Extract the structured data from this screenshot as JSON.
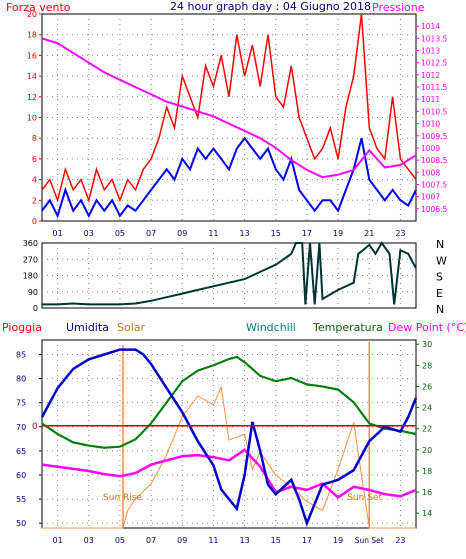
{
  "header": {
    "left_label": "Forza vento",
    "title": "24 hour graph day : 04 Giugno 2018",
    "right_label": "Pressione"
  },
  "legend_bottom": {
    "pioggia": "Pioggia",
    "umidita": "Umidita",
    "solar": "Solar",
    "windchill": "Windchill",
    "temperatura": "Temperatura",
    "dewpoint": "Dew Point (°C)"
  },
  "x_ticks": [
    "01",
    "03",
    "05",
    "07",
    "09",
    "11",
    "13",
    "15",
    "17",
    "19",
    "21",
    "23"
  ],
  "x_ticks_bottom": [
    "01",
    "03",
    "05",
    "07",
    "09",
    "11",
    "13",
    "15",
    "17",
    "19",
    "Sun Set",
    "23"
  ],
  "annotations": {
    "sunrise": "Sun Rise",
    "sunset": "Sun Set"
  },
  "compass": [
    "N",
    "W",
    "S",
    "E",
    "N"
  ],
  "colors": {
    "wind_gust": "#ff0000",
    "wind_avg": "#0000ff",
    "pressure": "#ff00ff",
    "direction": "#003333",
    "humidity": "#0000cc",
    "solar": "#ff8c40",
    "temperature": "#008000",
    "windchill": "#008080",
    "dewpoint": "#ff00ff",
    "rain": "#cc0000",
    "axis_left": "#ff0000",
    "axis_right": "#ff00ff",
    "axis_humidity": "#000080",
    "axis_temp": "#006600"
  },
  "chart_data": [
    {
      "type": "line",
      "name": "wind",
      "x_unit": "hour",
      "xlim": [
        0,
        24
      ],
      "ylim": [
        0,
        20
      ],
      "yticks": [
        0,
        2,
        4,
        6,
        8,
        10,
        12,
        14,
        16,
        18,
        20
      ],
      "y2lim": [
        1006.0,
        1014.5
      ],
      "y2ticks": [
        "1006.5",
        "1007",
        "1007.5",
        "1008",
        "1008.5",
        "1009",
        "1009.5",
        "1010",
        "1010.5",
        "1011",
        "1011.5",
        "1012",
        "1012.5",
        "1013",
        "1013.5",
        "1014"
      ],
      "gust": [
        [
          0,
          3
        ],
        [
          0.5,
          4
        ],
        [
          1,
          2
        ],
        [
          1.5,
          5
        ],
        [
          2,
          3
        ],
        [
          2.5,
          4
        ],
        [
          3,
          2
        ],
        [
          3.5,
          5
        ],
        [
          4,
          3
        ],
        [
          4.5,
          4
        ],
        [
          5,
          2
        ],
        [
          5.5,
          4
        ],
        [
          6,
          3
        ],
        [
          6.5,
          5
        ],
        [
          7,
          6
        ],
        [
          7.5,
          8
        ],
        [
          8,
          11
        ],
        [
          8.5,
          9
        ],
        [
          9,
          14
        ],
        [
          9.5,
          12
        ],
        [
          10,
          10
        ],
        [
          10.5,
          15
        ],
        [
          11,
          13
        ],
        [
          11.5,
          16
        ],
        [
          12,
          12
        ],
        [
          12.5,
          18
        ],
        [
          13,
          14
        ],
        [
          13.5,
          17
        ],
        [
          14,
          13
        ],
        [
          14.5,
          18
        ],
        [
          15,
          12
        ],
        [
          15.5,
          11
        ],
        [
          16,
          15
        ],
        [
          16.5,
          10
        ],
        [
          17,
          8
        ],
        [
          17.5,
          6
        ],
        [
          18,
          7
        ],
        [
          18.5,
          9
        ],
        [
          19,
          6
        ],
        [
          19.5,
          11
        ],
        [
          20,
          14
        ],
        [
          20.5,
          20
        ],
        [
          21,
          9
        ],
        [
          21.5,
          7
        ],
        [
          22,
          6
        ],
        [
          22.5,
          12
        ],
        [
          23,
          6
        ],
        [
          23.5,
          5
        ],
        [
          24,
          4
        ]
      ],
      "average": [
        [
          0,
          1
        ],
        [
          0.5,
          2
        ],
        [
          1,
          0.5
        ],
        [
          1.5,
          3
        ],
        [
          2,
          1
        ],
        [
          2.5,
          2
        ],
        [
          3,
          0.5
        ],
        [
          3.5,
          2
        ],
        [
          4,
          1
        ],
        [
          4.5,
          2
        ],
        [
          5,
          0.5
        ],
        [
          5.5,
          1.5
        ],
        [
          6,
          1
        ],
        [
          6.5,
          2
        ],
        [
          7,
          3
        ],
        [
          7.5,
          4
        ],
        [
          8,
          5
        ],
        [
          8.5,
          4
        ],
        [
          9,
          6
        ],
        [
          9.5,
          5
        ],
        [
          10,
          7
        ],
        [
          10.5,
          6
        ],
        [
          11,
          7
        ],
        [
          11.5,
          6
        ],
        [
          12,
          5
        ],
        [
          12.5,
          7
        ],
        [
          13,
          8
        ],
        [
          13.5,
          7
        ],
        [
          14,
          6
        ],
        [
          14.5,
          7
        ],
        [
          15,
          5
        ],
        [
          15.5,
          4
        ],
        [
          16,
          6
        ],
        [
          16.5,
          3
        ],
        [
          17,
          2
        ],
        [
          17.5,
          1
        ],
        [
          18,
          2
        ],
        [
          18.5,
          2
        ],
        [
          19,
          1
        ],
        [
          19.5,
          3
        ],
        [
          20,
          5
        ],
        [
          20.5,
          8
        ],
        [
          21,
          4
        ],
        [
          21.5,
          3
        ],
        [
          22,
          2
        ],
        [
          22.5,
          3
        ],
        [
          23,
          2
        ],
        [
          23.5,
          1.5
        ],
        [
          24,
          3
        ]
      ],
      "pressure": [
        [
          0,
          1013.5
        ],
        [
          1,
          1013.3
        ],
        [
          2,
          1012.9
        ],
        [
          3,
          1012.5
        ],
        [
          4,
          1012.1
        ],
        [
          5,
          1011.8
        ],
        [
          6,
          1011.5
        ],
        [
          7,
          1011.2
        ],
        [
          8,
          1010.9
        ],
        [
          9,
          1010.7
        ],
        [
          10,
          1010.5
        ],
        [
          11,
          1010.3
        ],
        [
          12,
          1010.0
        ],
        [
          13,
          1009.7
        ],
        [
          14,
          1009.4
        ],
        [
          15,
          1009.0
        ],
        [
          16,
          1008.5
        ],
        [
          17,
          1008.1
        ],
        [
          18,
          1007.8
        ],
        [
          19,
          1007.9
        ],
        [
          20,
          1008.1
        ],
        [
          21,
          1008.9
        ],
        [
          22,
          1008.2
        ],
        [
          23,
          1008.3
        ],
        [
          24,
          1008.7
        ]
      ]
    },
    {
      "type": "line",
      "name": "wind_direction",
      "x_unit": "hour",
      "xlim": [
        0,
        24
      ],
      "ylim": [
        0,
        360
      ],
      "yticks": [
        0,
        90,
        180,
        270,
        360
      ],
      "direction": [
        [
          0,
          20
        ],
        [
          1,
          20
        ],
        [
          2,
          25
        ],
        [
          3,
          20
        ],
        [
          4,
          20
        ],
        [
          5,
          20
        ],
        [
          6,
          25
        ],
        [
          7,
          40
        ],
        [
          8,
          60
        ],
        [
          9,
          80
        ],
        [
          10,
          100
        ],
        [
          11,
          120
        ],
        [
          12,
          140
        ],
        [
          13,
          160
        ],
        [
          14,
          200
        ],
        [
          15,
          240
        ],
        [
          16,
          300
        ],
        [
          16.3,
          360
        ],
        [
          16.7,
          360
        ],
        [
          16.9,
          20
        ],
        [
          17.2,
          360
        ],
        [
          17.5,
          20
        ],
        [
          17.8,
          360
        ],
        [
          18,
          50
        ],
        [
          19,
          100
        ],
        [
          20,
          140
        ],
        [
          20.3,
          300
        ],
        [
          20.6,
          320
        ],
        [
          21,
          350
        ],
        [
          21.4,
          300
        ],
        [
          21.8,
          360
        ],
        [
          22.3,
          300
        ],
        [
          22.6,
          20
        ],
        [
          23,
          320
        ],
        [
          23.5,
          300
        ],
        [
          24,
          220
        ]
      ]
    },
    {
      "type": "line",
      "name": "atmospheric",
      "x_unit": "hour",
      "xlim": [
        0,
        24
      ],
      "ylim": [
        49,
        88
      ],
      "yticks": [
        50,
        55,
        60,
        65,
        70,
        75,
        80,
        85
      ],
      "y2lim": [
        12.6,
        30.4
      ],
      "y2ticks": [
        14,
        16,
        18,
        20,
        22,
        24,
        26,
        28,
        30
      ],
      "rain_zero_level": "0",
      "humidity": [
        [
          0,
          72
        ],
        [
          1,
          78
        ],
        [
          2,
          82
        ],
        [
          3,
          84
        ],
        [
          4,
          85
        ],
        [
          5,
          86
        ],
        [
          6,
          86
        ],
        [
          6.5,
          85
        ],
        [
          7,
          83
        ],
        [
          8,
          78
        ],
        [
          9,
          73
        ],
        [
          10,
          67
        ],
        [
          11,
          62
        ],
        [
          11.5,
          57
        ],
        [
          12,
          55
        ],
        [
          12.5,
          53
        ],
        [
          13,
          60
        ],
        [
          13.5,
          71
        ],
        [
          14,
          65
        ],
        [
          14.5,
          58
        ],
        [
          15,
          56
        ],
        [
          16,
          59
        ],
        [
          16.5,
          55
        ],
        [
          17,
          50
        ],
        [
          17.5,
          54
        ],
        [
          18,
          58
        ],
        [
          19,
          59
        ],
        [
          20,
          61
        ],
        [
          21,
          67
        ],
        [
          22,
          70
        ],
        [
          23,
          69
        ],
        [
          23.5,
          72
        ],
        [
          24,
          76
        ]
      ],
      "solar": [
        [
          0,
          0
        ],
        [
          5.2,
          0
        ],
        [
          5.5,
          60
        ],
        [
          6,
          100
        ],
        [
          7,
          150
        ],
        [
          8,
          250
        ],
        [
          9,
          380
        ],
        [
          10,
          450
        ],
        [
          11,
          420
        ],
        [
          11.5,
          480
        ],
        [
          12,
          300
        ],
        [
          13,
          320
        ],
        [
          13.5,
          200
        ],
        [
          14,
          260
        ],
        [
          15,
          180
        ],
        [
          16,
          140
        ],
        [
          17,
          90
        ],
        [
          18,
          60
        ],
        [
          19,
          200
        ],
        [
          20,
          360
        ],
        [
          21,
          0
        ],
        [
          24,
          0
        ]
      ],
      "temperature": [
        [
          0,
          22.5
        ],
        [
          1,
          21.5
        ],
        [
          2,
          20.7
        ],
        [
          3,
          20.4
        ],
        [
          4,
          20.2
        ],
        [
          5,
          20.3
        ],
        [
          6,
          21
        ],
        [
          7,
          22.5
        ],
        [
          8,
          24.5
        ],
        [
          9,
          26.5
        ],
        [
          10,
          27.5
        ],
        [
          11,
          28
        ],
        [
          12,
          28.6
        ],
        [
          12.5,
          28.8
        ],
        [
          13,
          28.3
        ],
        [
          14,
          27
        ],
        [
          15,
          26.5
        ],
        [
          16,
          26.8
        ],
        [
          17,
          26.2
        ],
        [
          18,
          26
        ],
        [
          19,
          25.7
        ],
        [
          20,
          24.5
        ],
        [
          21,
          22.5
        ],
        [
          22,
          22
        ],
        [
          23,
          21.8
        ],
        [
          24,
          21.5
        ]
      ],
      "windchill": [
        [
          0,
          22.5
        ],
        [
          1,
          21.5
        ],
        [
          2,
          20.7
        ],
        [
          3,
          20.4
        ],
        [
          4,
          20.2
        ],
        [
          5,
          20.3
        ],
        [
          6,
          21
        ],
        [
          7,
          22.5
        ],
        [
          8,
          24.5
        ],
        [
          9,
          26.5
        ],
        [
          10,
          27.5
        ],
        [
          11,
          28
        ],
        [
          12,
          28.6
        ],
        [
          12.5,
          28.8
        ],
        [
          13,
          28.3
        ],
        [
          14,
          27
        ],
        [
          15,
          26.5
        ],
        [
          16,
          26.8
        ],
        [
          17,
          26.2
        ],
        [
          18,
          26
        ],
        [
          19,
          25.7
        ],
        [
          20,
          24.5
        ],
        [
          21,
          22.5
        ],
        [
          22,
          22
        ],
        [
          23,
          21.8
        ],
        [
          24,
          21.5
        ]
      ],
      "dewpoint": [
        [
          0,
          18.6
        ],
        [
          1,
          18.4
        ],
        [
          2,
          18.2
        ],
        [
          3,
          18
        ],
        [
          4,
          17.7
        ],
        [
          5,
          17.5
        ],
        [
          6,
          17.8
        ],
        [
          7,
          18.6
        ],
        [
          8,
          19
        ],
        [
          9,
          19.4
        ],
        [
          10,
          19.5
        ],
        [
          11,
          19.3
        ],
        [
          12,
          19
        ],
        [
          13,
          20
        ],
        [
          14,
          18.4
        ],
        [
          15,
          16
        ],
        [
          16,
          16.5
        ],
        [
          17,
          16.2
        ],
        [
          18,
          16.8
        ],
        [
          19,
          15.5
        ],
        [
          20,
          16.5
        ],
        [
          21,
          16.2
        ],
        [
          22,
          15.8
        ],
        [
          23,
          15.6
        ],
        [
          24,
          16.2
        ]
      ],
      "rain": [
        [
          0,
          0
        ],
        [
          24,
          0
        ]
      ]
    }
  ]
}
